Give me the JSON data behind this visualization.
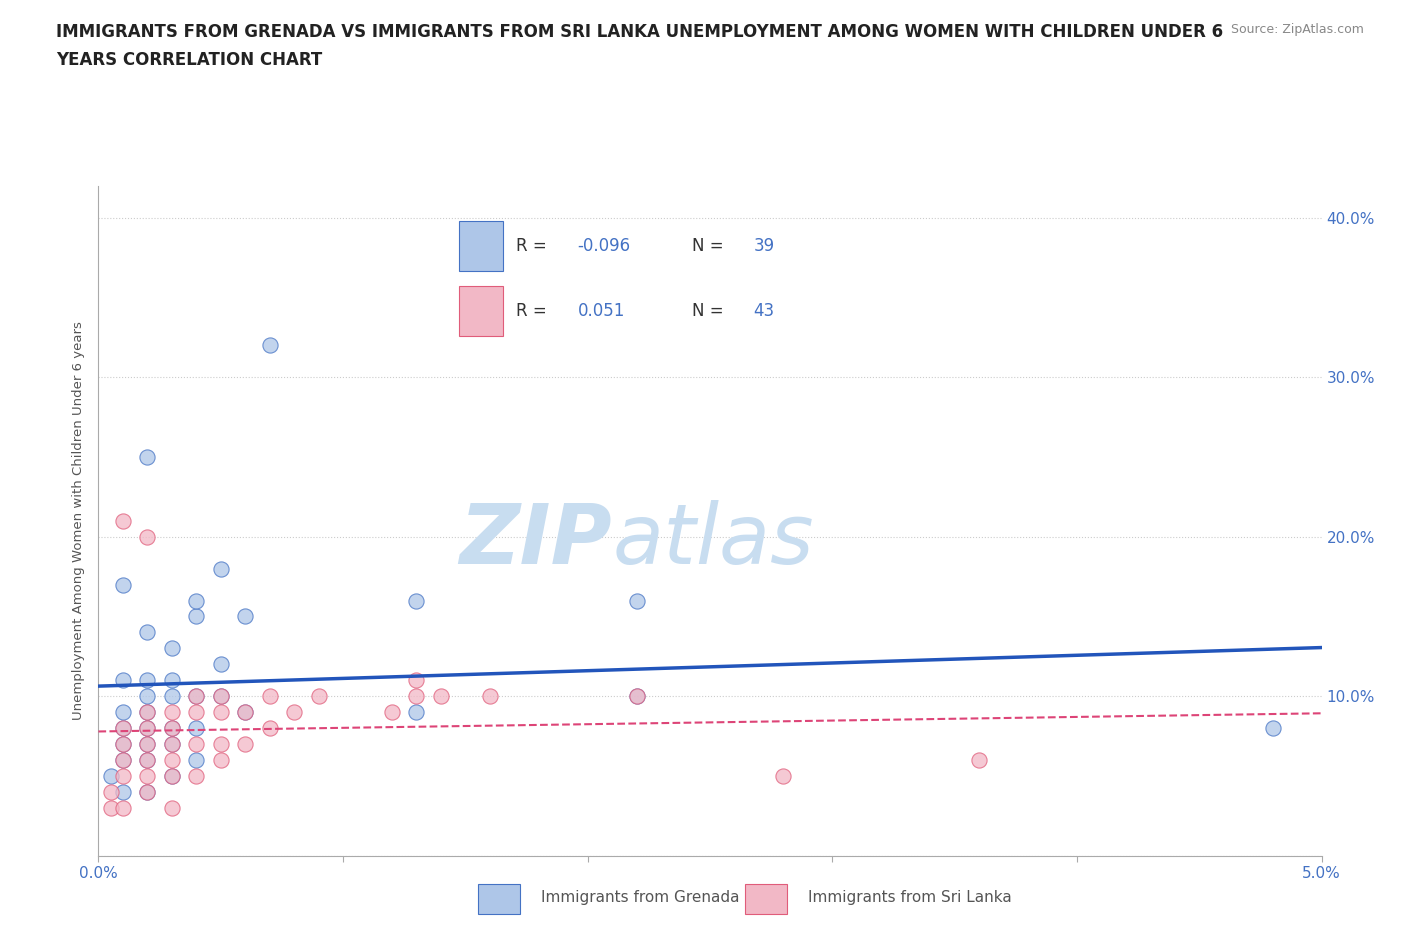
{
  "title_line1": "IMMIGRANTS FROM GRENADA VS IMMIGRANTS FROM SRI LANKA UNEMPLOYMENT AMONG WOMEN WITH CHILDREN UNDER 6",
  "title_line2": "YEARS CORRELATION CHART",
  "source": "Source: ZipAtlas.com",
  "ylabel": "Unemployment Among Women with Children Under 6 years",
  "grenada_label": "Immigrants from Grenada",
  "srilanka_label": "Immigrants from Sri Lanka",
  "grenada_R": -0.096,
  "grenada_N": 39,
  "srilanka_R": 0.051,
  "srilanka_N": 43,
  "xlim": [
    0.0,
    0.05
  ],
  "ylim": [
    0.0,
    0.42
  ],
  "xtick_positions": [
    0.0,
    0.01,
    0.02,
    0.03,
    0.04,
    0.05
  ],
  "xtick_labels": [
    "0.0%",
    "",
    "",
    "",
    "",
    "5.0%"
  ],
  "yticks_right": [
    0.1,
    0.2,
    0.3,
    0.4
  ],
  "ytick_right_labels": [
    "10.0%",
    "20.0%",
    "30.0%",
    "40.0%"
  ],
  "background_color": "#ffffff",
  "grenada_color": "#aec6e8",
  "srilanka_color": "#f2b8c6",
  "grenada_edge_color": "#4472c4",
  "srilanka_edge_color": "#e05c7a",
  "grenada_line_color": "#2255bb",
  "srilanka_line_color": "#dd4477",
  "grid_color": "#cccccc",
  "title_color": "#222222",
  "source_color": "#888888",
  "axis_label_color": "#555555",
  "tick_label_color": "#4472c4",
  "watermark_zip_color": "#c8ddf0",
  "watermark_atlas_color": "#c8ddf0",
  "grenada_x": [
    0.0005,
    0.001,
    0.001,
    0.001,
    0.001,
    0.001,
    0.001,
    0.001,
    0.002,
    0.002,
    0.002,
    0.002,
    0.002,
    0.002,
    0.002,
    0.002,
    0.002,
    0.003,
    0.003,
    0.003,
    0.003,
    0.003,
    0.003,
    0.004,
    0.004,
    0.004,
    0.004,
    0.004,
    0.005,
    0.005,
    0.005,
    0.006,
    0.006,
    0.007,
    0.013,
    0.013,
    0.022,
    0.022,
    0.048
  ],
  "grenada_y": [
    0.05,
    0.04,
    0.06,
    0.07,
    0.08,
    0.09,
    0.11,
    0.17,
    0.04,
    0.06,
    0.07,
    0.08,
    0.09,
    0.1,
    0.11,
    0.14,
    0.25,
    0.05,
    0.07,
    0.08,
    0.1,
    0.11,
    0.13,
    0.06,
    0.08,
    0.1,
    0.15,
    0.16,
    0.1,
    0.12,
    0.18,
    0.09,
    0.15,
    0.32,
    0.09,
    0.16,
    0.1,
    0.16,
    0.08
  ],
  "srilanka_x": [
    0.0005,
    0.0005,
    0.001,
    0.001,
    0.001,
    0.001,
    0.001,
    0.001,
    0.002,
    0.002,
    0.002,
    0.002,
    0.002,
    0.002,
    0.002,
    0.003,
    0.003,
    0.003,
    0.003,
    0.003,
    0.003,
    0.004,
    0.004,
    0.004,
    0.004,
    0.005,
    0.005,
    0.005,
    0.005,
    0.006,
    0.006,
    0.007,
    0.007,
    0.008,
    0.009,
    0.012,
    0.013,
    0.013,
    0.014,
    0.016,
    0.022,
    0.028,
    0.036
  ],
  "srilanka_y": [
    0.03,
    0.04,
    0.03,
    0.05,
    0.06,
    0.07,
    0.08,
    0.21,
    0.04,
    0.05,
    0.06,
    0.07,
    0.08,
    0.09,
    0.2,
    0.03,
    0.05,
    0.06,
    0.07,
    0.08,
    0.09,
    0.05,
    0.07,
    0.09,
    0.1,
    0.06,
    0.07,
    0.09,
    0.1,
    0.07,
    0.09,
    0.08,
    0.1,
    0.09,
    0.1,
    0.09,
    0.1,
    0.11,
    0.1,
    0.1,
    0.1,
    0.05,
    0.06
  ]
}
